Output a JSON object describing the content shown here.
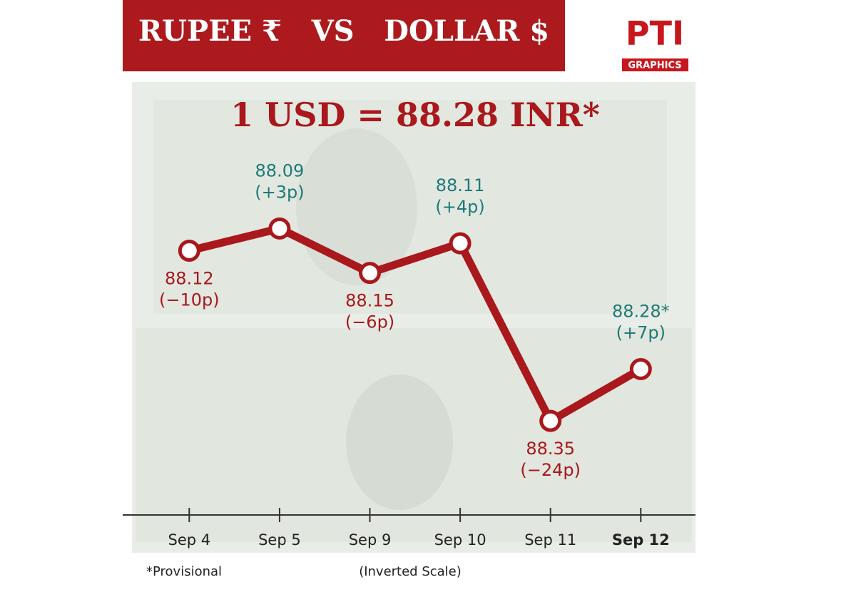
{
  "chart_data": {
    "type": "line",
    "title": "RUPEE ₹   VS   DOLLAR $",
    "headline": "1 USD = 88.28 INR*",
    "logo": "PTI",
    "logo_sub": "GRAPHICS",
    "footnote": "*Provisional",
    "scale_note": "(Inverted Scale)",
    "categories": [
      "Sep 4",
      "Sep 5",
      "Sep 9",
      "Sep 10",
      "Sep 11",
      "Sep 12"
    ],
    "values": [
      88.12,
      88.09,
      88.15,
      88.11,
      88.35,
      88.28
    ],
    "value_labels": [
      "88.12",
      "88.09",
      "88.15",
      "88.11",
      "88.35",
      "88.28*"
    ],
    "change_labels": [
      "(−10p)",
      "(+3p)",
      "(−6p)",
      "(+4p)",
      "(−24p)",
      "(+7p)"
    ],
    "value_label_colors": [
      "#a8181c",
      "#1f7a78",
      "#a8181c",
      "#1f7a78",
      "#a8181c",
      "#1f7a78"
    ],
    "color": "#a8181c",
    "ylim": [
      88.0,
      88.4
    ],
    "y_inverted": true
  }
}
